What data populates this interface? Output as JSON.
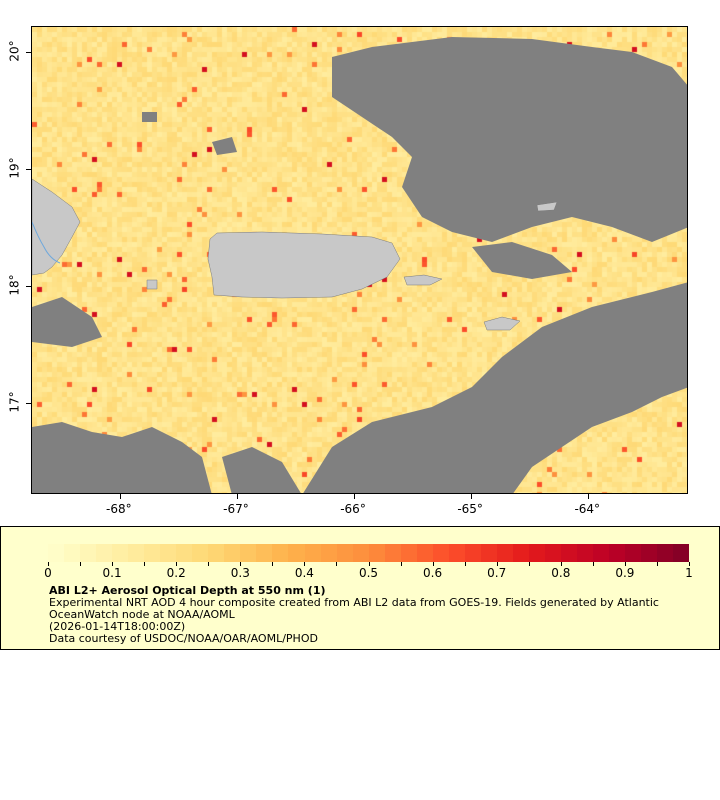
{
  "map": {
    "lon_range": [
      -68.76,
      -63.15
    ],
    "lat_range": [
      16.22,
      20.22
    ],
    "lon_ticks": [
      {
        "value": -68,
        "label": "-68°"
      },
      {
        "value": -67,
        "label": "-67°"
      },
      {
        "value": -66,
        "label": "-66°"
      },
      {
        "value": -65,
        "label": "-65°"
      },
      {
        "value": -64,
        "label": "-64°"
      }
    ],
    "lat_ticks": [
      {
        "value": 20,
        "label": "20°"
      },
      {
        "value": 19,
        "label": "19°"
      },
      {
        "value": 18,
        "label": "18°"
      },
      {
        "value": 17,
        "label": "17°"
      }
    ],
    "colors": {
      "land": "#c8c8c8",
      "no_data": "#808080",
      "frame": "#000000"
    }
  },
  "legend": {
    "colorbar_ticks": [
      "0",
      "0.1",
      "0.2",
      "0.3",
      "0.4",
      "0.5",
      "0.6",
      "0.7",
      "0.8",
      "0.9",
      "1"
    ],
    "range": [
      0,
      1
    ],
    "colormap": [
      "#ffffcc",
      "#ffeda0",
      "#fed976",
      "#feb24c",
      "#fd8d3c",
      "#fc4e2a",
      "#e31a1c",
      "#bd0026",
      "#800026"
    ],
    "title": "ABI L2+ Aerosol Optical Depth at 550 nm (1)",
    "line1": "Experimental NRT AOD 4 hour composite created from ABI L2 data from GOES-19. Fields generated by Atlantic",
    "line2": "OceanWatch node at NOAA/AOML",
    "time": "(2026-01-14T18:00:00Z)",
    "credit": "Data courtesy of USDOC/NOAA/OAR/AOML/PHOD"
  }
}
